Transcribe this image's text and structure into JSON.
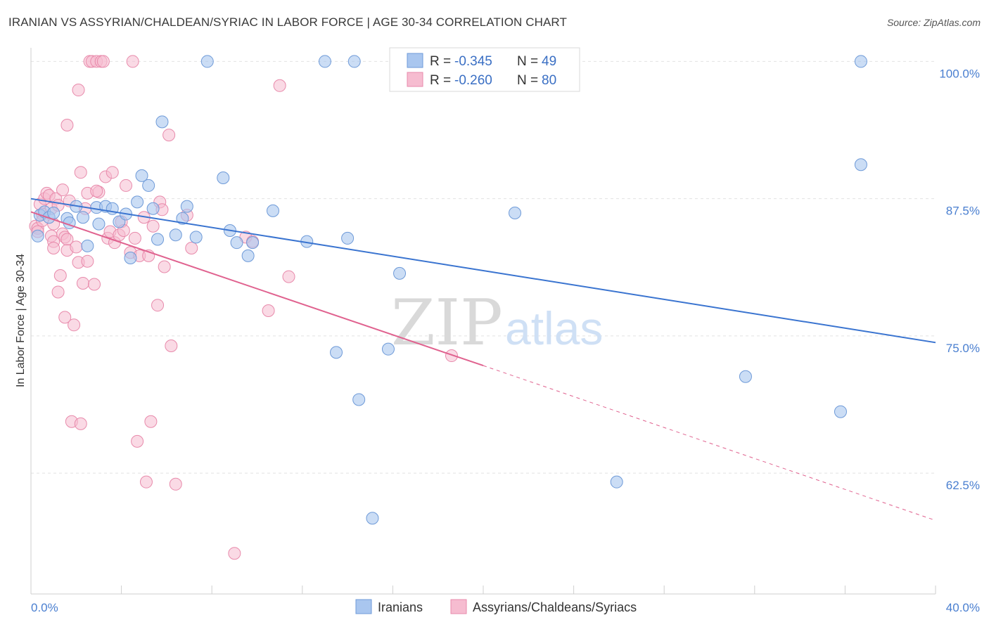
{
  "title": "IRANIAN VS ASSYRIAN/CHALDEAN/SYRIAC IN LABOR FORCE | AGE 30-34 CORRELATION CHART",
  "source": "Source: ZipAtlas.com",
  "watermark": {
    "zip": "ZIP",
    "atlas": "atlas"
  },
  "colors": {
    "blue_fill": "#a9c6ef",
    "blue_stroke": "#6e9ad8",
    "blue_line": "#3a74d0",
    "pink_fill": "#f6bcd0",
    "pink_stroke": "#e88aab",
    "pink_line": "#e0628f",
    "grid": "#e2e2e2",
    "tick_label": "#4a7fd0"
  },
  "legend": {
    "rows": [
      {
        "r_label": "R =",
        "r_value": "-0.345",
        "n_label": "N =",
        "n_value": "49"
      },
      {
        "r_label": "R =",
        "r_value": "-0.260",
        "n_label": "N =",
        "n_value": "80"
      }
    ]
  },
  "chart_data": {
    "type": "scatter",
    "title": "IRANIAN VS ASSYRIAN/CHALDEAN/SYRIAC IN LABOR FORCE | AGE 30-34 CORRELATION CHART",
    "xlabel": "",
    "ylabel": "In Labor Force | Age 30-34",
    "xlim": [
      0,
      40
    ],
    "ylim": [
      51.5,
      101.5
    ],
    "x_tick_labels": [
      "0.0%",
      "40.0%"
    ],
    "y_ticks": [
      62.5,
      75.0,
      87.5,
      100.0
    ],
    "y_tick_labels": [
      "62.5%",
      "75.0%",
      "87.5%",
      "100.0%"
    ],
    "grid": true,
    "legend_position": "bottom",
    "series": [
      {
        "name": "Iranians",
        "color": "#a9c6ef",
        "r": -0.345,
        "n": 49,
        "trend": {
          "x0": 0,
          "y0": 87.5,
          "x1": 40,
          "y1": 74.4,
          "dashed_to": null
        },
        "points": [
          [
            0.3,
            84.1
          ],
          [
            0.4,
            86.0
          ],
          [
            0.6,
            86.3
          ],
          [
            0.8,
            85.8
          ],
          [
            1.0,
            86.2
          ],
          [
            1.6,
            85.7
          ],
          [
            1.7,
            85.3
          ],
          [
            2.0,
            86.8
          ],
          [
            2.3,
            85.8
          ],
          [
            2.5,
            83.2
          ],
          [
            2.9,
            86.7
          ],
          [
            3.0,
            85.2
          ],
          [
            3.3,
            86.8
          ],
          [
            3.6,
            86.6
          ],
          [
            3.9,
            85.4
          ],
          [
            4.2,
            86.1
          ],
          [
            4.4,
            82.1
          ],
          [
            4.7,
            87.2
          ],
          [
            4.9,
            89.6
          ],
          [
            5.2,
            88.7
          ],
          [
            5.4,
            86.6
          ],
          [
            5.6,
            83.8
          ],
          [
            5.8,
            94.5
          ],
          [
            6.4,
            84.2
          ],
          [
            6.7,
            85.7
          ],
          [
            6.9,
            86.8
          ],
          [
            7.3,
            84.0
          ],
          [
            7.8,
            100.0
          ],
          [
            8.5,
            89.4
          ],
          [
            8.8,
            84.6
          ],
          [
            9.1,
            83.5
          ],
          [
            9.6,
            82.3
          ],
          [
            9.8,
            83.5
          ],
          [
            10.7,
            86.4
          ],
          [
            12.2,
            83.6
          ],
          [
            13.0,
            100.0
          ],
          [
            13.5,
            73.5
          ],
          [
            14.0,
            83.9
          ],
          [
            14.3,
            100.0
          ],
          [
            14.5,
            69.2
          ],
          [
            15.1,
            58.4
          ],
          [
            15.8,
            73.8
          ],
          [
            16.3,
            80.7
          ],
          [
            21.4,
            86.2
          ],
          [
            25.9,
            61.7
          ],
          [
            31.6,
            71.3
          ],
          [
            35.8,
            68.1
          ],
          [
            36.7,
            90.6
          ],
          [
            36.7,
            100.0
          ]
        ]
      },
      {
        "name": "Assyrians/Chaldeans/Syriacs",
        "color": "#f6bcd0",
        "r": -0.26,
        "n": 80,
        "trend": {
          "x0": 0,
          "y0": 86.3,
          "x1": 20.0,
          "y1": 72.3,
          "dashed_to": {
            "x": 40,
            "y": 58.2
          }
        },
        "points": [
          [
            0.2,
            85.0
          ],
          [
            0.3,
            84.8
          ],
          [
            0.4,
            87.0
          ],
          [
            0.5,
            86.1
          ],
          [
            0.6,
            87.5
          ],
          [
            0.7,
            88.0
          ],
          [
            0.8,
            87.8
          ],
          [
            0.9,
            86.6
          ],
          [
            0.9,
            84.1
          ],
          [
            1.0,
            83.6
          ],
          [
            1.0,
            83.0
          ],
          [
            1.1,
            87.5
          ],
          [
            1.2,
            79.0
          ],
          [
            1.3,
            80.5
          ],
          [
            1.4,
            88.3
          ],
          [
            1.4,
            84.3
          ],
          [
            1.5,
            76.7
          ],
          [
            1.5,
            84.0
          ],
          [
            1.6,
            83.8
          ],
          [
            1.6,
            82.8
          ],
          [
            1.7,
            87.3
          ],
          [
            1.8,
            67.2
          ],
          [
            1.9,
            76.0
          ],
          [
            2.0,
            83.1
          ],
          [
            2.1,
            97.4
          ],
          [
            2.1,
            81.7
          ],
          [
            2.2,
            67.0
          ],
          [
            2.2,
            89.9
          ],
          [
            2.3,
            79.8
          ],
          [
            2.4,
            86.6
          ],
          [
            2.5,
            88.0
          ],
          [
            2.5,
            81.8
          ],
          [
            2.6,
            100.0
          ],
          [
            2.7,
            100.0
          ],
          [
            2.8,
            79.7
          ],
          [
            2.9,
            100.0
          ],
          [
            3.0,
            88.1
          ],
          [
            3.1,
            100.0
          ],
          [
            3.2,
            100.0
          ],
          [
            3.3,
            89.5
          ],
          [
            3.4,
            83.9
          ],
          [
            3.5,
            84.5
          ],
          [
            3.6,
            89.9
          ],
          [
            3.7,
            83.5
          ],
          [
            3.9,
            84.2
          ],
          [
            4.0,
            85.4
          ],
          [
            4.2,
            88.7
          ],
          [
            4.4,
            82.6
          ],
          [
            4.5,
            100.0
          ],
          [
            4.6,
            83.9
          ],
          [
            4.7,
            65.4
          ],
          [
            4.8,
            82.3
          ],
          [
            5.0,
            85.8
          ],
          [
            5.1,
            61.7
          ],
          [
            5.2,
            82.3
          ],
          [
            5.3,
            67.2
          ],
          [
            5.4,
            85.0
          ],
          [
            5.6,
            77.8
          ],
          [
            5.7,
            87.2
          ],
          [
            5.8,
            86.5
          ],
          [
            5.9,
            81.3
          ],
          [
            6.1,
            93.3
          ],
          [
            6.2,
            74.1
          ],
          [
            6.4,
            61.5
          ],
          [
            6.9,
            86.0
          ],
          [
            7.1,
            83.0
          ],
          [
            1.6,
            94.2
          ],
          [
            9.0,
            55.2
          ],
          [
            9.5,
            84.0
          ],
          [
            9.8,
            83.6
          ],
          [
            10.5,
            77.3
          ],
          [
            11.0,
            97.8
          ],
          [
            11.4,
            80.4
          ],
          [
            18.6,
            73.2
          ],
          [
            0.3,
            84.5
          ],
          [
            0.5,
            85.5
          ],
          [
            1.2,
            86.9
          ],
          [
            2.9,
            88.2
          ],
          [
            4.1,
            84.6
          ],
          [
            1.0,
            85.2
          ]
        ]
      }
    ]
  },
  "bottom_legend": [
    {
      "label": "Iranians"
    },
    {
      "label": "Assyrians/Chaldeans/Syriacs"
    }
  ]
}
